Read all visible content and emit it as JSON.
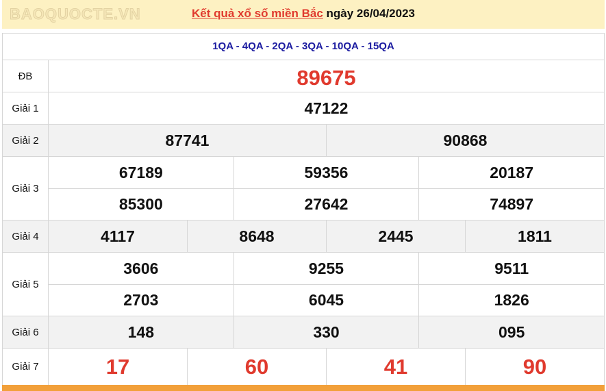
{
  "header": {
    "link": "Kết quả xổ số miền Bắc",
    "date_text": " ngày 26/04/2023"
  },
  "codes": "1QA - 4QA - 2QA - 3QA - 10QA - 15QA",
  "prizes": {
    "db": {
      "label": "ĐB",
      "values": [
        "89675"
      ]
    },
    "g1": {
      "label": "Giải 1",
      "values": [
        "47122"
      ]
    },
    "g2": {
      "label": "Giải 2",
      "values": [
        "87741",
        "90868"
      ]
    },
    "g3": {
      "label": "Giải 3",
      "values": [
        "67189",
        "59356",
        "20187",
        "85300",
        "27642",
        "74897"
      ]
    },
    "g4": {
      "label": "Giải 4",
      "values": [
        "4117",
        "8648",
        "2445",
        "1811"
      ]
    },
    "g5": {
      "label": "Giải 5",
      "values": [
        "3606",
        "9255",
        "9511",
        "2703",
        "6045",
        "1826"
      ]
    },
    "g6": {
      "label": "Giải 6",
      "values": [
        "148",
        "330",
        "095"
      ]
    },
    "g7": {
      "label": "Giải 7",
      "values": [
        "17",
        "60",
        "41",
        "90"
      ]
    }
  },
  "watermark": "BAOQUOCTE.VN",
  "colors": {
    "accent": "#e03a2e",
    "codes": "#1b1ba0",
    "header_bg": "#fdf1c2",
    "footer_bar": "#f2a03a"
  }
}
